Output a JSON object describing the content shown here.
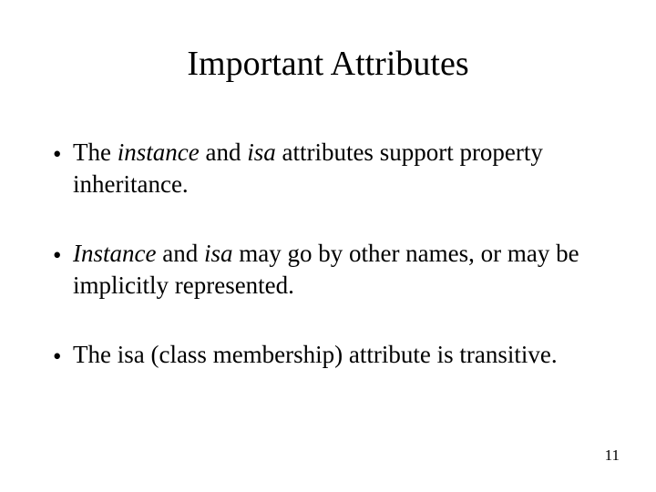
{
  "slide": {
    "title": "Important Attributes",
    "page_number": "11",
    "background_color": "#ffffff",
    "text_color": "#000000",
    "font_family": "Times New Roman",
    "title_fontsize": 38,
    "body_fontsize": 27,
    "pagenum_fontsize": 17,
    "bullets": [
      {
        "runs": [
          {
            "t": "The ",
            "i": false
          },
          {
            "t": "instance",
            "i": true
          },
          {
            "t": " and ",
            "i": false
          },
          {
            "t": "isa",
            "i": true
          },
          {
            "t": " attributes support property inheritance.",
            "i": false
          }
        ]
      },
      {
        "runs": [
          {
            "t": "Instance",
            "i": true
          },
          {
            "t": " and ",
            "i": false
          },
          {
            "t": "isa",
            "i": true
          },
          {
            "t": " may go by other names, or may be implicitly represented.",
            "i": false
          }
        ]
      },
      {
        "runs": [
          {
            "t": "The isa (class membership) attribute is transitive.",
            "i": false
          }
        ]
      }
    ]
  }
}
